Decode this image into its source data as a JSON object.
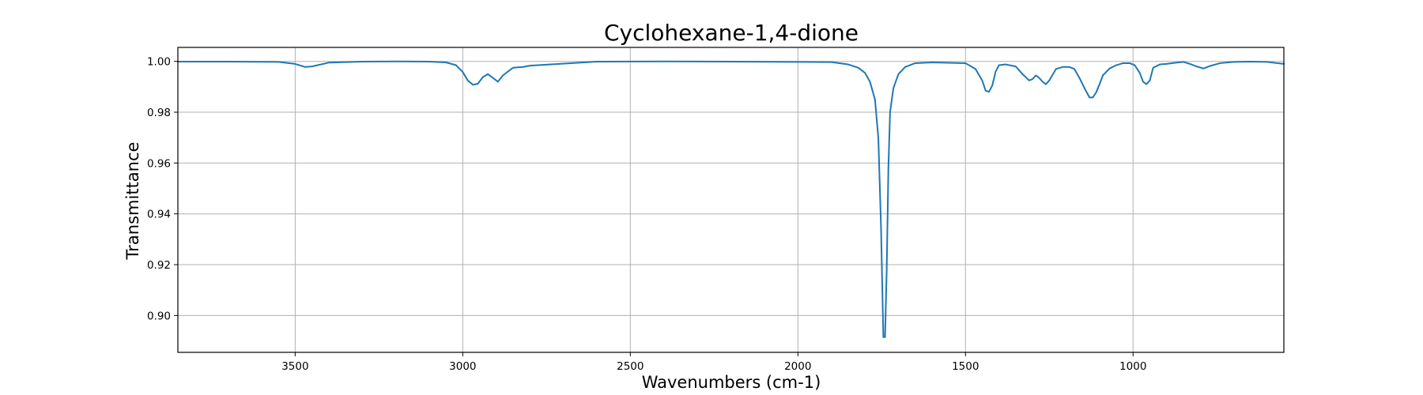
{
  "chart_data": {
    "type": "line",
    "title": "Cyclohexane-1,4-dione",
    "xlabel": "Wavenumbers (cm-1)",
    "ylabel": "Transmittance",
    "xlim": [
      3850,
      550
    ],
    "ylim": [
      0.8855,
      1.0055
    ],
    "x_reversed": true,
    "grid": true,
    "legend": "none",
    "line_color": "#1f77b4",
    "xticks": [
      3500,
      3000,
      2500,
      2000,
      1500,
      1000
    ],
    "xtick_labels": [
      "3500",
      "3000",
      "2500",
      "2000",
      "1500",
      "1000"
    ],
    "yticks": [
      0.9,
      0.92,
      0.94,
      0.96,
      0.98,
      1.0
    ],
    "ytick_labels": [
      "0.90",
      "0.92",
      "0.94",
      "0.96",
      "0.98",
      "1.00"
    ],
    "series": [
      {
        "x": [
          3850,
          3700,
          3550,
          3500,
          3470,
          3450,
          3400,
          3300,
          3200,
          3100,
          3050,
          3020,
          3000,
          2985,
          2970,
          2955,
          2940,
          2925,
          2910,
          2895,
          2880,
          2850,
          2820,
          2800,
          2600,
          2400,
          2200,
          2000,
          1900,
          1850,
          1820,
          1800,
          1785,
          1770,
          1760,
          1752,
          1745,
          1740,
          1735,
          1730,
          1725,
          1715,
          1700,
          1680,
          1650,
          1600,
          1500,
          1470,
          1450,
          1440,
          1430,
          1420,
          1410,
          1400,
          1380,
          1350,
          1330,
          1310,
          1300,
          1290,
          1280,
          1270,
          1260,
          1250,
          1230,
          1210,
          1190,
          1175,
          1160,
          1145,
          1130,
          1120,
          1110,
          1100,
          1090,
          1070,
          1050,
          1030,
          1010,
          995,
          980,
          970,
          960,
          950,
          940,
          920,
          900,
          870,
          850,
          830,
          810,
          790,
          770,
          740,
          700,
          650,
          600,
          570,
          550
        ],
        "y": [
          0.9999,
          0.9999,
          0.9998,
          0.999,
          0.9978,
          0.998,
          0.9995,
          0.9999,
          1.0,
          0.9999,
          0.9996,
          0.9985,
          0.9958,
          0.9925,
          0.9908,
          0.9912,
          0.9938,
          0.995,
          0.9935,
          0.992,
          0.9945,
          0.9975,
          0.9978,
          0.9983,
          0.9999,
          1.0,
          0.9999,
          0.9998,
          0.9997,
          0.9988,
          0.9975,
          0.9955,
          0.992,
          0.985,
          0.97,
          0.935,
          0.8915,
          0.8915,
          0.918,
          0.958,
          0.98,
          0.9895,
          0.995,
          0.9978,
          0.9993,
          0.9996,
          0.9993,
          0.997,
          0.9925,
          0.9885,
          0.988,
          0.9905,
          0.996,
          0.9985,
          0.9988,
          0.998,
          0.995,
          0.9925,
          0.993,
          0.9945,
          0.9935,
          0.992,
          0.991,
          0.9925,
          0.997,
          0.9978,
          0.9978,
          0.997,
          0.9935,
          0.9895,
          0.9858,
          0.9858,
          0.9878,
          0.991,
          0.9945,
          0.9972,
          0.9985,
          0.9993,
          0.9993,
          0.9985,
          0.9955,
          0.992,
          0.991,
          0.9925,
          0.9975,
          0.9988,
          0.999,
          0.9995,
          0.9998,
          0.999,
          0.998,
          0.9972,
          0.9982,
          0.9993,
          0.9998,
          0.9999,
          0.9998,
          0.9993,
          0.999
        ]
      }
    ]
  }
}
